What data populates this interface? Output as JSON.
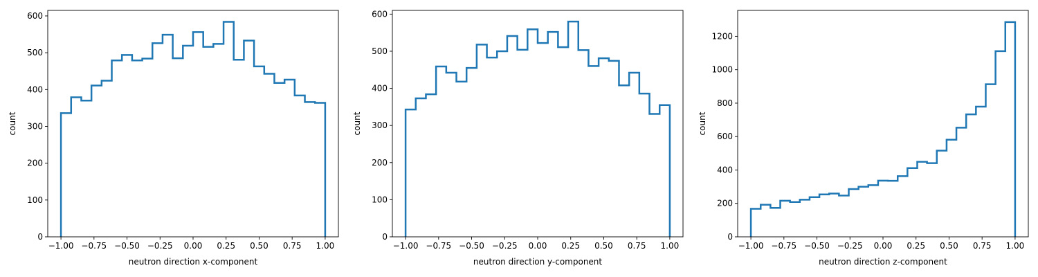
{
  "chart_data": [
    {
      "type": "histogram-step",
      "xlabel": "neutron direction x-component",
      "ylabel": "count",
      "xlim": [
        -1.1,
        1.1
      ],
      "ylim": [
        0,
        615
      ],
      "xticks": [
        -1.0,
        -0.75,
        -0.5,
        -0.25,
        0.0,
        0.25,
        0.5,
        0.75,
        1.0
      ],
      "xtick_labels": [
        "−1.00",
        "−0.75",
        "−0.50",
        "−0.25",
        "0.00",
        "0.25",
        "0.50",
        "0.75",
        "1.00"
      ],
      "yticks": [
        0,
        100,
        200,
        300,
        400,
        500,
        600
      ],
      "ytick_labels": [
        "0",
        "100",
        "200",
        "300",
        "400",
        "500",
        "600"
      ],
      "bin_range": [
        -1.0,
        1.0
      ],
      "counts": [
        336,
        379,
        370,
        411,
        424,
        479,
        494,
        479,
        484,
        526,
        549,
        485,
        519,
        556,
        516,
        524,
        584,
        481,
        533,
        463,
        443,
        418,
        427,
        384,
        366,
        364
      ]
    },
    {
      "type": "histogram-step",
      "xlabel": "neutron direction y-component",
      "ylabel": "count",
      "xlim": [
        -1.1,
        1.1
      ],
      "ylim": [
        0,
        610
      ],
      "xticks": [
        -1.0,
        -0.75,
        -0.5,
        -0.25,
        0.0,
        0.25,
        0.5,
        0.75,
        1.0
      ],
      "xtick_labels": [
        "−1.00",
        "−0.75",
        "−0.50",
        "−0.25",
        "0.00",
        "0.25",
        "0.50",
        "0.75",
        "1.00"
      ],
      "yticks": [
        0,
        100,
        200,
        300,
        400,
        500,
        600
      ],
      "ytick_labels": [
        "0",
        "100",
        "200",
        "300",
        "400",
        "500",
        "600"
      ],
      "bin_range": [
        -1.0,
        1.0
      ],
      "counts": [
        343,
        373,
        384,
        459,
        442,
        418,
        455,
        518,
        483,
        500,
        541,
        504,
        559,
        522,
        552,
        511,
        580,
        503,
        460,
        481,
        474,
        408,
        442,
        386,
        331,
        355
      ]
    },
    {
      "type": "histogram-step",
      "xlabel": "neutron direction z-component",
      "ylabel": "count",
      "xlim": [
        -1.1,
        1.1
      ],
      "ylim": [
        0,
        1355
      ],
      "xticks": [
        -1.0,
        -0.75,
        -0.5,
        -0.25,
        0.0,
        0.25,
        0.5,
        0.75,
        1.0
      ],
      "xtick_labels": [
        "−1.00",
        "−0.75",
        "−0.50",
        "−0.25",
        "0.00",
        "0.25",
        "0.50",
        "0.75",
        "1.00"
      ],
      "yticks": [
        0,
        200,
        400,
        600,
        800,
        1000,
        1200
      ],
      "ytick_labels": [
        "0",
        "200",
        "400",
        "600",
        "800",
        "1000",
        "1200"
      ],
      "bin_range": [
        -1.0,
        1.0
      ],
      "counts": [
        168,
        192,
        173,
        216,
        208,
        222,
        237,
        254,
        259,
        247,
        286,
        300,
        309,
        336,
        335,
        363,
        411,
        449,
        441,
        516,
        581,
        653,
        733,
        779,
        913,
        1111,
        1285
      ]
    }
  ],
  "colors": {
    "line": "#1f77b4",
    "axis": "#000000"
  }
}
